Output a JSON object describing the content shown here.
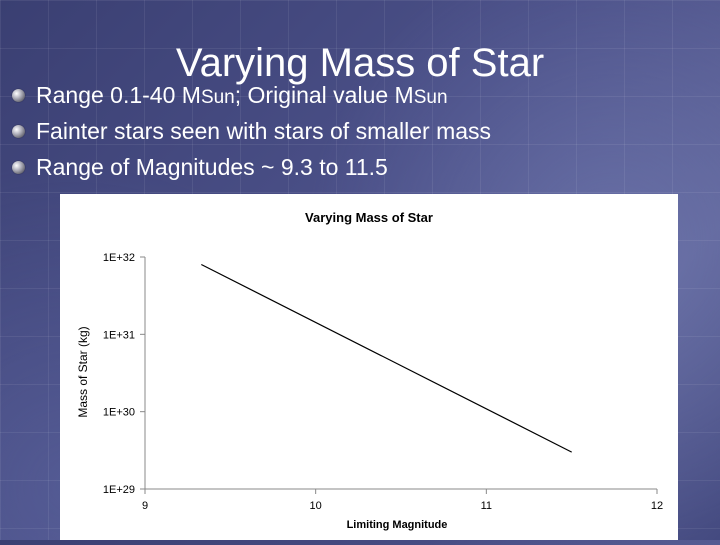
{
  "slide": {
    "title": "Varying Mass of Star",
    "bullets": [
      {
        "parts": [
          "Range 0.1-40 M",
          "Sun",
          "; Original value M",
          "Sun"
        ]
      },
      {
        "text": "Fainter stars seen with stars of smaller mass"
      },
      {
        "text": "Range of Magnitudes ~ 9.3 to 11.5"
      }
    ]
  },
  "colors": {
    "slide_bg": "#4b5088",
    "text": "#ffffff",
    "chart_line": "#000000"
  },
  "chart_data": {
    "type": "line",
    "title": "Varying Mass of Star",
    "xlabel": "Limiting Magnitude",
    "ylabel": "Mass of Star (kg)",
    "xlim": [
      9,
      12
    ],
    "ylim": [
      1e+29,
      1e+32
    ],
    "yscale": "log",
    "grid": false,
    "x_ticks": [
      "9",
      "10",
      "11",
      "12"
    ],
    "y_ticks": [
      "1E+29",
      "1E+30",
      "1E+31",
      "1E+32"
    ],
    "series": [
      {
        "x": [
          9.33,
          11.5
        ],
        "y": [
          8e+31,
          3e+29
        ]
      }
    ]
  }
}
